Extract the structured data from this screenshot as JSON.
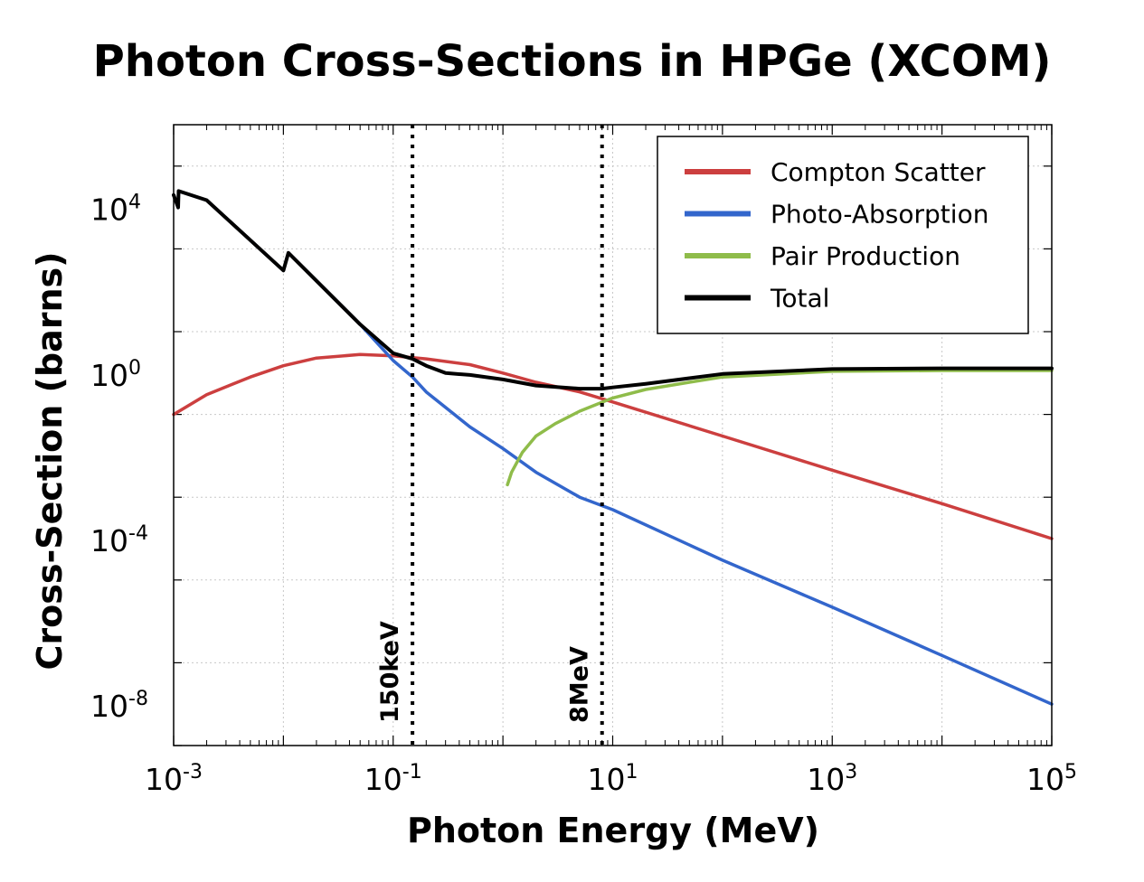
{
  "title": "Photon Cross-Sections in HPGe (XCOM)",
  "chart_data": {
    "type": "line",
    "xscale": "log",
    "yscale": "log",
    "xlabel": "Photon Energy (MeV)",
    "ylabel": "Cross-Section (barns)",
    "xlim_exp": [
      -3,
      5
    ],
    "ylim_exp": [
      -9,
      6
    ],
    "x_ticks": [
      {
        "exp": -3,
        "base": "10",
        "sup": "-3"
      },
      {
        "exp": -1,
        "base": "10",
        "sup": "-1"
      },
      {
        "exp": 1,
        "base": "10",
        "sup": "1"
      },
      {
        "exp": 3,
        "base": "10",
        "sup": "3"
      },
      {
        "exp": 5,
        "base": "10",
        "sup": "5"
      }
    ],
    "y_ticks": [
      {
        "exp": 4,
        "base": "10",
        "sup": "4"
      },
      {
        "exp": 0,
        "base": "10",
        "sup": "0"
      },
      {
        "exp": -4,
        "base": "10",
        "sup": "-4"
      },
      {
        "exp": -8,
        "base": "10",
        "sup": "-8"
      }
    ],
    "grid": true,
    "legend_position": "top-right",
    "markers": [
      {
        "label": "150keV",
        "x": 0.15
      },
      {
        "label": "8MeV",
        "x": 8
      }
    ],
    "series": [
      {
        "name": "Compton Scatter",
        "color": "#cc3f3f",
        "points": [
          [
            0.001,
            0.1
          ],
          [
            0.002,
            0.3
          ],
          [
            0.005,
            0.8
          ],
          [
            0.01,
            1.5
          ],
          [
            0.02,
            2.3
          ],
          [
            0.05,
            2.8
          ],
          [
            0.1,
            2.6
          ],
          [
            0.2,
            2.2
          ],
          [
            0.5,
            1.6
          ],
          [
            1,
            1.0
          ],
          [
            2,
            0.6
          ],
          [
            5,
            0.35
          ],
          [
            10,
            0.2
          ],
          [
            100,
            0.03
          ],
          [
            1000,
            0.0045
          ],
          [
            10000,
            0.0007
          ],
          [
            100000,
            0.0001
          ]
        ]
      },
      {
        "name": "Photo-Absorption",
        "color": "#3366cc",
        "points": [
          [
            0.001,
            20000
          ],
          [
            0.0011,
            10000
          ],
          [
            0.00111,
            25000
          ],
          [
            0.002,
            15000
          ],
          [
            0.01,
            300
          ],
          [
            0.0111,
            800
          ],
          [
            0.05,
            15
          ],
          [
            0.1,
            2.0
          ],
          [
            0.15,
            0.8
          ],
          [
            0.2,
            0.35
          ],
          [
            0.5,
            0.05
          ],
          [
            1,
            0.015
          ],
          [
            2,
            0.004
          ],
          [
            5,
            0.001
          ],
          [
            10,
            0.0005
          ],
          [
            100,
            3e-05
          ],
          [
            1000,
            2.2e-06
          ],
          [
            10000,
            1.5e-07
          ],
          [
            100000,
            1e-08
          ]
        ]
      },
      {
        "name": "Pair Production",
        "color": "#8fbc4a",
        "points": [
          [
            1.1,
            0.002
          ],
          [
            1.2,
            0.004
          ],
          [
            1.5,
            0.012
          ],
          [
            2,
            0.03
          ],
          [
            3,
            0.06
          ],
          [
            5,
            0.12
          ],
          [
            10,
            0.25
          ],
          [
            20,
            0.4
          ],
          [
            50,
            0.6
          ],
          [
            100,
            0.8
          ],
          [
            1000,
            1.1
          ],
          [
            10000,
            1.15
          ],
          [
            100000,
            1.15
          ]
        ]
      },
      {
        "name": "Total",
        "color": "#000000",
        "points": [
          [
            0.001,
            20000
          ],
          [
            0.0011,
            10000
          ],
          [
            0.00111,
            25000
          ],
          [
            0.002,
            15000
          ],
          [
            0.01,
            300
          ],
          [
            0.0111,
            800
          ],
          [
            0.05,
            15
          ],
          [
            0.1,
            3.0
          ],
          [
            0.15,
            2.2
          ],
          [
            0.2,
            1.5
          ],
          [
            0.3,
            1.0
          ],
          [
            0.5,
            0.9
          ],
          [
            1,
            0.7
          ],
          [
            2,
            0.5
          ],
          [
            5,
            0.42
          ],
          [
            8,
            0.42
          ],
          [
            10,
            0.45
          ],
          [
            20,
            0.55
          ],
          [
            50,
            0.75
          ],
          [
            100,
            0.95
          ],
          [
            1000,
            1.25
          ],
          [
            10000,
            1.3
          ],
          [
            100000,
            1.3
          ]
        ]
      }
    ]
  }
}
